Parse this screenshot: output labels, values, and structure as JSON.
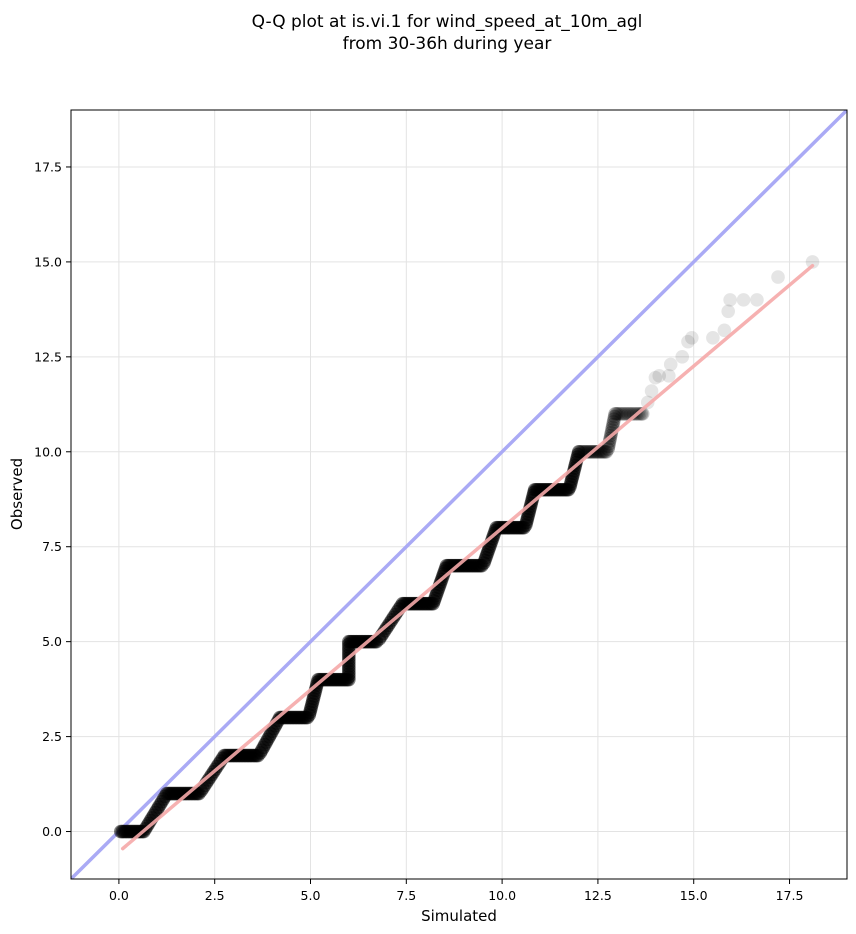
{
  "chart_data": {
    "type": "scatter",
    "title": "Q-Q plot at is.vi.1 for wind_speed_at_10m_agl",
    "subtitle": "from 30-36h during year",
    "xlabel": "Simulated",
    "ylabel": "Observed",
    "xlim": [
      -1.25,
      19.0
    ],
    "ylim": [
      -1.25,
      19.0
    ],
    "xticks": [
      "0.0",
      "2.5",
      "5.0",
      "7.5",
      "10.0",
      "12.5",
      "15.0",
      "17.5"
    ],
    "yticks": [
      "0.0",
      "2.5",
      "5.0",
      "7.5",
      "10.0",
      "12.5",
      "15.0",
      "17.5"
    ],
    "xtick_values": [
      0,
      2.5,
      5,
      7.5,
      10,
      12.5,
      15,
      17.5
    ],
    "ytick_values": [
      0,
      2.5,
      5,
      7.5,
      10,
      12.5,
      15,
      17.5
    ],
    "grid": true,
    "identity_line": {
      "from": [
        -1.25,
        -1.25
      ],
      "to": [
        19.0,
        19.0
      ],
      "color": "#aaaaf5"
    },
    "fit_line": {
      "from": [
        0.1,
        -0.45
      ],
      "to": [
        18.1,
        14.9
      ],
      "color": "#f5a8a8"
    },
    "marker_color": "#000000",
    "step_segments": [
      {
        "obs": 0,
        "x_start": 0.05,
        "x_end": 0.65
      },
      {
        "obs": 1,
        "x_start": 1.25,
        "x_end": 2.1
      },
      {
        "obs": 2,
        "x_start": 2.75,
        "x_end": 3.65
      },
      {
        "obs": 3,
        "x_start": 4.2,
        "x_end": 4.95
      },
      {
        "obs": 4,
        "x_start": 5.2,
        "x_end": 6.0
      },
      {
        "obs": 5,
        "x_start": 6.0,
        "x_end": 6.75
      },
      {
        "obs": 6,
        "x_start": 7.4,
        "x_end": 8.2
      },
      {
        "obs": 7,
        "x_start": 8.55,
        "x_end": 9.5
      },
      {
        "obs": 8,
        "x_start": 9.85,
        "x_end": 10.6
      },
      {
        "obs": 9,
        "x_start": 10.85,
        "x_end": 11.75
      },
      {
        "obs": 10,
        "x_start": 12.0,
        "x_end": 12.75
      },
      {
        "obs": 11,
        "x_start": 12.95,
        "x_end": 13.7
      }
    ],
    "tail_points": [
      [
        13.65,
        11.0
      ],
      [
        13.8,
        11.3
      ],
      [
        13.9,
        11.6
      ],
      [
        14.0,
        11.95
      ],
      [
        14.1,
        12.0
      ],
      [
        14.35,
        12.0
      ],
      [
        14.4,
        12.3
      ],
      [
        14.7,
        12.5
      ],
      [
        14.85,
        12.9
      ],
      [
        14.95,
        13.0
      ],
      [
        15.5,
        13.0
      ],
      [
        15.8,
        13.2
      ],
      [
        15.9,
        13.7
      ],
      [
        15.95,
        14.0
      ],
      [
        16.3,
        14.0
      ],
      [
        16.65,
        14.0
      ],
      [
        17.2,
        14.6
      ],
      [
        18.1,
        15.0
      ]
    ]
  }
}
